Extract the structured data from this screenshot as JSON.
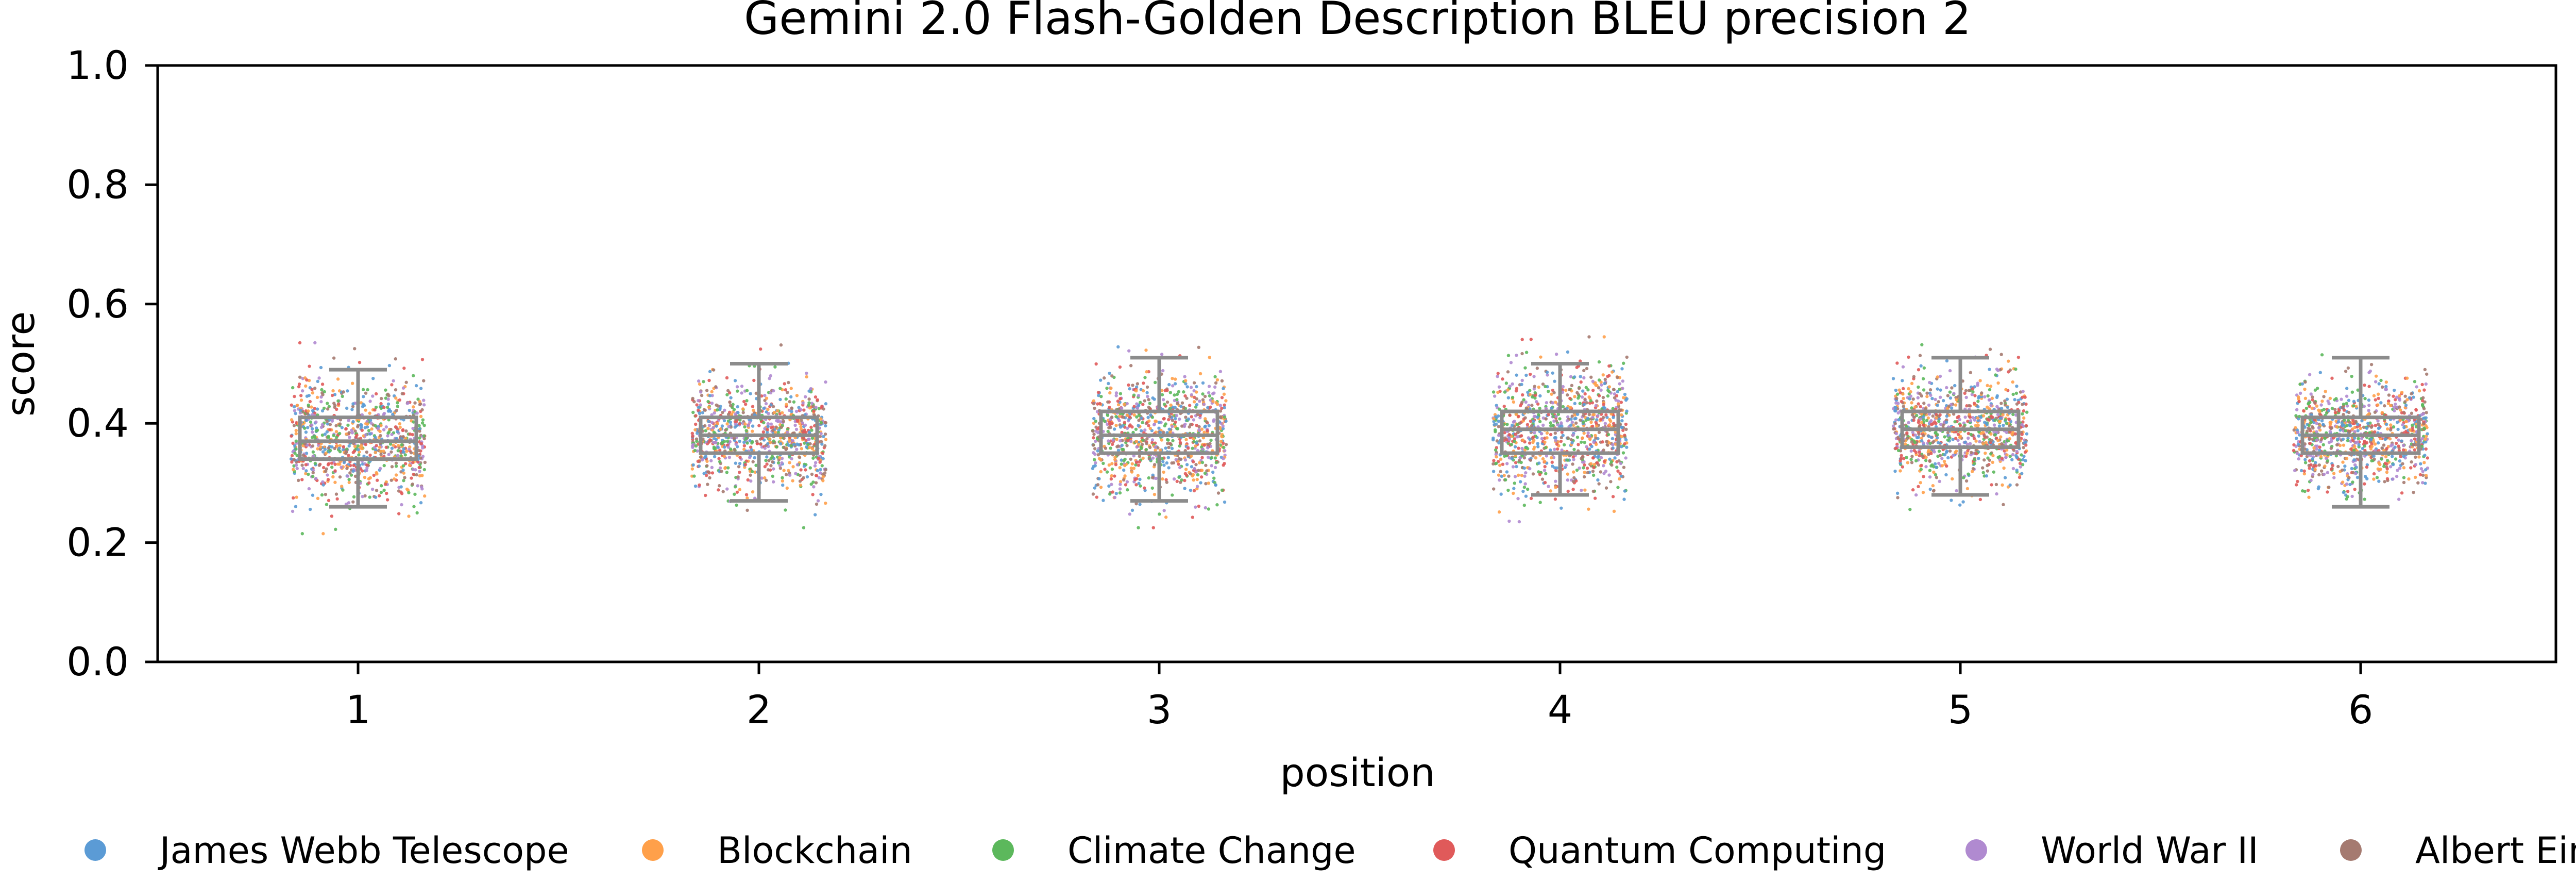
{
  "chart_data": {
    "type": "scatter",
    "title": "Gemini 2.0 Flash-Golden Description BLEU precision 2",
    "xlabel": "position",
    "ylabel": "score",
    "categories": [
      "1",
      "2",
      "3",
      "4",
      "5",
      "6"
    ],
    "ylim": [
      0.0,
      1.0
    ],
    "yticks": [
      "0.0",
      "0.2",
      "0.4",
      "0.6",
      "0.8",
      "1.0"
    ],
    "grid": false,
    "legend_position": "bottom",
    "series": [
      {
        "name": "James Webb Telescope",
        "color": "#5b9bd5"
      },
      {
        "name": "Blockchain",
        "color": "#ffa04a"
      },
      {
        "name": "Climate Change",
        "color": "#5cb85c"
      },
      {
        "name": "Quantum Computing",
        "color": "#e05a5a"
      },
      {
        "name": "World War II",
        "color": "#b08ad0"
      },
      {
        "name": "Albert Einstein",
        "color": "#a57a70"
      }
    ],
    "boxes": [
      {
        "position": "1",
        "q1": 0.34,
        "median": 0.37,
        "q3": 0.41,
        "whisker_low": 0.26,
        "whisker_high": 0.49
      },
      {
        "position": "2",
        "q1": 0.35,
        "median": 0.38,
        "q3": 0.41,
        "whisker_low": 0.27,
        "whisker_high": 0.5
      },
      {
        "position": "3",
        "q1": 0.35,
        "median": 0.38,
        "q3": 0.42,
        "whisker_low": 0.27,
        "whisker_high": 0.51
      },
      {
        "position": "4",
        "q1": 0.35,
        "median": 0.39,
        "q3": 0.42,
        "whisker_low": 0.28,
        "whisker_high": 0.5
      },
      {
        "position": "5",
        "q1": 0.36,
        "median": 0.39,
        "q3": 0.42,
        "whisker_low": 0.28,
        "whisker_high": 0.51
      },
      {
        "position": "6",
        "q1": 0.35,
        "median": 0.38,
        "q3": 0.41,
        "whisker_low": 0.26,
        "whisker_high": 0.51
      }
    ]
  }
}
